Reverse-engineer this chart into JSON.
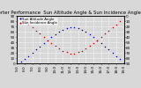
{
  "title": "Solar PV/Inverter Performance  Sun Altitude Angle & Sun Incidence Angle on PV Panels",
  "background_color": "#d8d8d8",
  "plot_bg_color": "#d8d8d8",
  "grid_color": "#ffffff",
  "blue_color": "#0000cc",
  "red_color": "#cc0000",
  "ylim": [
    0,
    90
  ],
  "yticks": [
    0,
    10,
    20,
    30,
    40,
    50,
    60,
    70,
    80,
    90
  ],
  "ytick_labels_left": [
    "0",
    "10",
    "20",
    "30",
    "40",
    "50",
    "60",
    "70",
    "80",
    "90"
  ],
  "ytick_labels_right": [
    "90",
    "80",
    "70",
    "60",
    "50",
    "40",
    "30",
    "20",
    "10",
    "0"
  ],
  "hours": [
    5,
    5.5,
    6,
    6.5,
    7,
    7.5,
    8,
    8.5,
    9,
    9.5,
    10,
    10.5,
    11,
    11.5,
    12,
    12.5,
    13,
    13.5,
    14,
    14.5,
    15,
    15.5,
    16,
    16.5,
    17,
    17.5,
    18,
    18.5,
    19
  ],
  "sun_altitude": [
    0,
    3,
    8,
    14,
    20,
    26,
    32,
    38,
    44,
    50,
    55,
    60,
    64,
    67,
    69,
    69,
    67,
    64,
    60,
    55,
    50,
    44,
    38,
    32,
    26,
    20,
    14,
    8,
    2
  ],
  "sun_incidence": [
    90,
    85,
    80,
    74,
    68,
    62,
    56,
    50,
    44,
    38,
    33,
    28,
    24,
    21,
    19,
    19,
    21,
    24,
    28,
    33,
    38,
    44,
    50,
    56,
    62,
    68,
    74,
    80,
    86
  ],
  "xlim": [
    5,
    19
  ],
  "xticks": [
    5,
    6,
    7,
    8,
    9,
    10,
    11,
    12,
    13,
    14,
    15,
    16,
    17,
    18,
    19
  ],
  "xtick_labels": [
    "5:0",
    "6:0",
    "7:0",
    "8:0",
    "9:0",
    "10:0",
    "11:0",
    "12:0",
    "13:0",
    "14:0",
    "15:0",
    "16:0",
    "17:0",
    "18:0",
    "19:0"
  ],
  "title_fontsize": 3.8,
  "tick_fontsize": 3.0,
  "marker_size": 1.2,
  "legend_fontsize": 2.8,
  "legend_label_blue": "Sun Altitude Angle",
  "legend_label_red": "Sun Incidence Angle"
}
